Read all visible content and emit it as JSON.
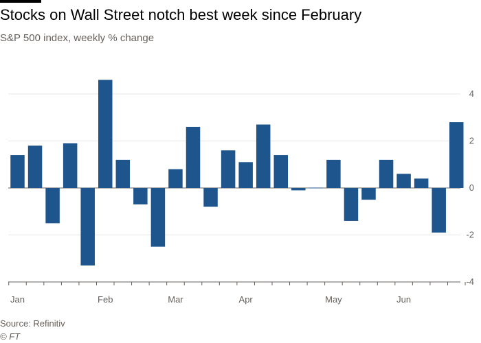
{
  "header": {
    "title": "Stocks on Wall Street notch best week since February",
    "subtitle": "S&P 500 index, weekly % change"
  },
  "footer": {
    "source": "Source: Refinitiv",
    "credit": "© FT"
  },
  "colors": {
    "bar": "#1e558c",
    "grid": "#e8e6e4",
    "axis": "#66605c"
  },
  "chart_data": {
    "type": "bar",
    "title": "Stocks on Wall Street notch best week since February",
    "subtitle": "S&P 500 index, weekly % change",
    "xlabel": "",
    "ylabel": "",
    "ylim": [
      -4,
      4.6
    ],
    "yticks": [
      4,
      2,
      0,
      -2,
      -4
    ],
    "y_axis_side": "right",
    "grid": true,
    "x_month_labels": [
      {
        "label": "Jan",
        "at_week": 0.5
      },
      {
        "label": "Feb",
        "at_week": 5.5
      },
      {
        "label": "Mar",
        "at_week": 9.5
      },
      {
        "label": "Apr",
        "at_week": 13.5
      },
      {
        "label": "May",
        "at_week": 18.5
      },
      {
        "label": "Jun",
        "at_week": 22.5
      }
    ],
    "series": [
      {
        "name": "Weekly % change",
        "values": [
          1.4,
          1.8,
          -1.5,
          1.9,
          -3.3,
          4.6,
          1.2,
          -0.7,
          -2.5,
          0.8,
          2.6,
          -0.8,
          1.6,
          1.1,
          2.7,
          1.4,
          -0.1,
          0.0,
          1.2,
          -1.4,
          -0.5,
          1.2,
          0.6,
          0.4,
          -1.9,
          2.8
        ]
      }
    ]
  }
}
